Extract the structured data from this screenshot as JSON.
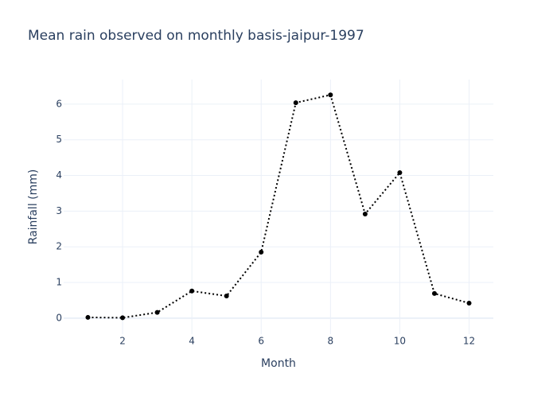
{
  "chart_data": {
    "type": "line",
    "title": "Mean rain observed on monthly basis-jaipur-1997",
    "x_label": "Month",
    "y_label": "Rainfall (mm)",
    "x": [
      1,
      2,
      3,
      4,
      5,
      6,
      7,
      8,
      9,
      10,
      11,
      12
    ],
    "series": [
      {
        "color": "#000000",
        "values": [
          0.02,
          0.01,
          0.16,
          0.76,
          0.62,
          1.85,
          6.04,
          6.26,
          2.92,
          4.08,
          0.69,
          0.42
        ]
      }
    ],
    "xlim": [
      0.3,
      12.7
    ],
    "xticks": [
      2,
      4,
      6,
      8,
      10,
      12
    ],
    "ylim": [
      -0.45,
      6.69
    ],
    "yticks": [
      0,
      1,
      2,
      3,
      4,
      5,
      6
    ],
    "grid": true
  }
}
